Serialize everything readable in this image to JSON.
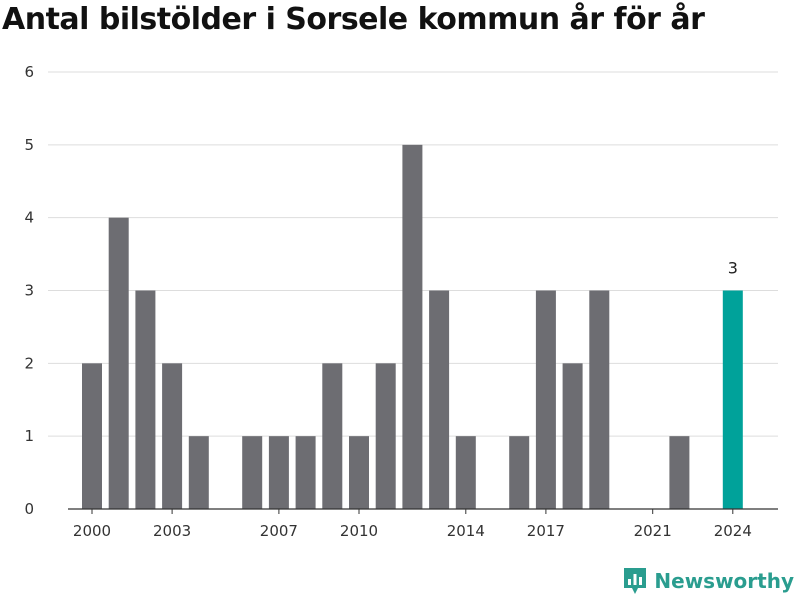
{
  "chart_data": {
    "type": "bar",
    "title": "Antal bilstölder i Sorsele kommun år för år",
    "xlabel": "",
    "ylabel": "",
    "ylim": [
      0,
      6
    ],
    "yticks": [
      0,
      1,
      2,
      3,
      4,
      5,
      6
    ],
    "xticks": [
      2000,
      2003,
      2007,
      2010,
      2014,
      2017,
      2021,
      2024
    ],
    "grid": true,
    "categories": [
      2000,
      2001,
      2002,
      2003,
      2004,
      2005,
      2006,
      2007,
      2008,
      2009,
      2010,
      2011,
      2012,
      2013,
      2014,
      2015,
      2016,
      2017,
      2018,
      2019,
      2020,
      2021,
      2022,
      2023,
      2024
    ],
    "values": [
      2,
      4,
      3,
      2,
      1,
      0,
      1,
      1,
      1,
      2,
      1,
      2,
      5,
      3,
      1,
      0,
      1,
      3,
      2,
      3,
      0,
      0,
      1,
      0,
      3
    ],
    "highlight": {
      "category": 2024,
      "label": "3"
    },
    "colors": {
      "bar": "#6d6d72",
      "highlight": "#00a29a"
    }
  },
  "brand": {
    "name": "Newsworthy",
    "icon": "bar-chart-badge-icon",
    "color": "#2a9d8f"
  }
}
